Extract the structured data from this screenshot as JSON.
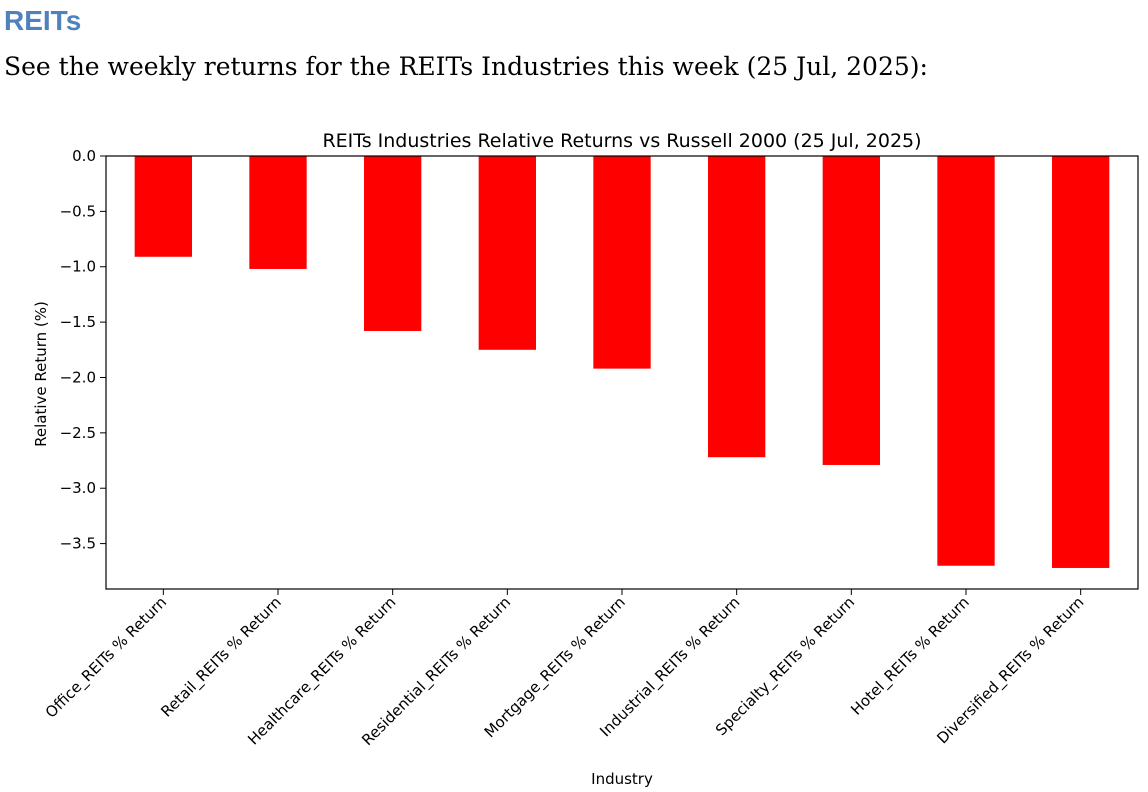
{
  "document": {
    "heading": "REITs",
    "intro": "See the weekly returns for the REITs Industries this week (25 Jul, 2025):",
    "heading_color": "#4f81bd"
  },
  "chart_data": {
    "type": "bar",
    "title": "REITs Industries Relative Returns vs Russell 2000 (25 Jul, 2025)",
    "xlabel": "Industry",
    "ylabel": "Relative Return (%)",
    "categories": [
      "Office_REITs % Return",
      "Retail_REITs % Return",
      "Healthcare_REITs % Return",
      "Residential_REITs % Return",
      "Mortgage_REITs % Return",
      "Industrial_REITs % Return",
      "Specialty_REITs % Return",
      "Hotel_REITs % Return",
      "Diversified_REITs % Return"
    ],
    "values": [
      -0.91,
      -1.02,
      -1.58,
      -1.75,
      -1.92,
      -2.72,
      -2.79,
      -3.7,
      -3.72
    ],
    "ylim": [
      -3.91,
      0.0
    ],
    "yticks": [
      0.0,
      -0.5,
      -1.0,
      -1.5,
      -2.0,
      -2.5,
      -3.0,
      -3.5
    ],
    "ytick_labels": [
      "0.0",
      "−0.5",
      "−1.0",
      "−1.5",
      "−2.0",
      "−2.5",
      "−3.0",
      "−3.5"
    ],
    "bar_color": "#ff0000",
    "grid": false,
    "legend": "none"
  }
}
